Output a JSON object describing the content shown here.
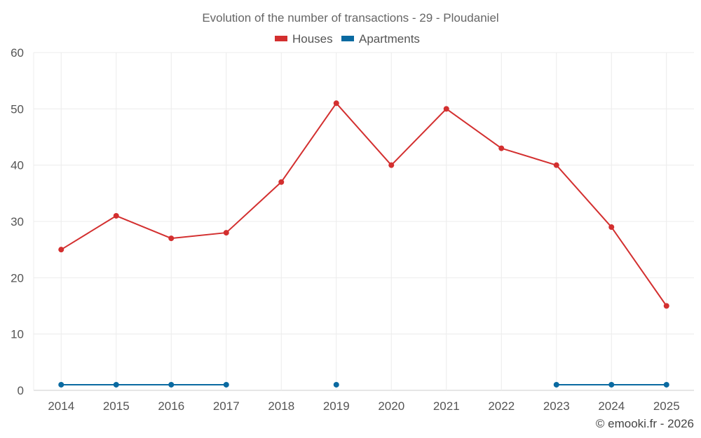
{
  "chart_data": {
    "type": "line",
    "title": "Evolution of the number of transactions - 29 - Ploudaniel",
    "categories": [
      "2014",
      "2015",
      "2016",
      "2017",
      "2018",
      "2019",
      "2020",
      "2021",
      "2022",
      "2023",
      "2024",
      "2025"
    ],
    "ylim": [
      0,
      60
    ],
    "yticks": [
      0,
      10,
      20,
      30,
      40,
      50,
      60
    ],
    "grid": true,
    "legend_position": "top-center",
    "series": [
      {
        "name": "Houses",
        "color": "#d32f2f",
        "values": [
          25,
          31,
          27,
          28,
          37,
          51,
          40,
          50,
          43,
          40,
          29,
          15
        ]
      },
      {
        "name": "Apartments",
        "color": "#0a6aa1",
        "values": [
          1,
          1,
          1,
          1,
          null,
          1,
          null,
          null,
          null,
          1,
          1,
          1
        ]
      }
    ]
  },
  "credit": "© emooki.fr - 2026"
}
